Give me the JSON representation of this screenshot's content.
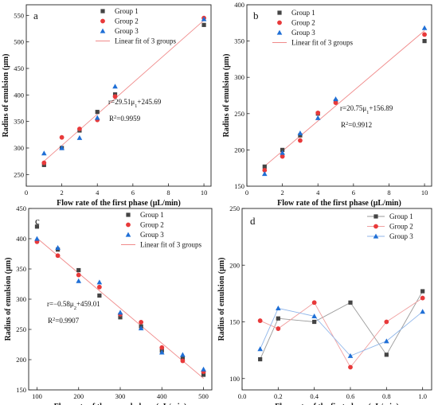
{
  "chart_data": [
    {
      "type": "scatter",
      "panel_label": "a",
      "xlabel": "Flow rate of the first phase (μL/min)",
      "ylabel": "Radius of emulsion (μm)",
      "xlim": [
        0,
        10.4
      ],
      "ylim": [
        228,
        570
      ],
      "xticks": [
        0,
        2,
        4,
        6,
        8,
        10
      ],
      "yticks": [
        250,
        300,
        350,
        400,
        450,
        500,
        550
      ],
      "x": [
        1,
        2,
        3,
        4,
        5,
        10
      ],
      "series": [
        {
          "name": "Group 1",
          "marker": "square",
          "color": "#444444",
          "values": [
            268,
            300,
            333,
            368,
            401,
            532
          ]
        },
        {
          "name": "Group 2",
          "marker": "circle",
          "color": "#e8393a",
          "values": [
            272,
            320,
            336,
            353,
            397,
            545
          ]
        },
        {
          "name": "Group 3",
          "marker": "triangle",
          "color": "#1f6fd6",
          "values": [
            290,
            300,
            319,
            357,
            416,
            543
          ]
        }
      ],
      "fit": {
        "name": "Linear fit of 3 groups",
        "color": "#f08a8a",
        "slope": 29.51,
        "intercept": 245.69,
        "x_range": [
          1,
          10
        ]
      },
      "equation": "r=29.51μ",
      "equation_sub": "1",
      "equation_tail": "+245.69",
      "r2_prefix": "R",
      "r2_sup": "2",
      "r2_value": "=0.9959"
    },
    {
      "type": "scatter",
      "panel_label": "b",
      "xlabel": "Flow rate of the first phase (μL/min)",
      "ylabel": "Radius of emulsion (μm)",
      "xlim": [
        0,
        10.4
      ],
      "ylim": [
        150,
        400
      ],
      "xticks": [
        0,
        2,
        4,
        6,
        8,
        10
      ],
      "yticks": [
        150,
        200,
        250,
        300,
        350,
        400
      ],
      "x": [
        1,
        2,
        3,
        4,
        5,
        10
      ],
      "series": [
        {
          "name": "Group 1",
          "marker": "square",
          "color": "#444444",
          "values": [
            177,
            200,
            220,
            250,
            267,
            350
          ]
        },
        {
          "name": "Group 2",
          "marker": "circle",
          "color": "#e8393a",
          "values": [
            172,
            191,
            213,
            251,
            265,
            359
          ]
        },
        {
          "name": "Group 3",
          "marker": "triangle",
          "color": "#1f6fd6",
          "values": [
            167,
            196,
            223,
            244,
            270,
            368
          ]
        }
      ],
      "fit": {
        "name": "Linear fit of 3 groups",
        "color": "#f08a8a",
        "slope": 20.75,
        "intercept": 156.89,
        "x_range": [
          1,
          10
        ]
      },
      "equation": "r=20.75μ",
      "equation_sub": "1",
      "equation_tail": "+156.89",
      "r2_prefix": "R",
      "r2_sup": "2",
      "r2_value": "=0.9912"
    },
    {
      "type": "scatter",
      "panel_label": "c",
      "xlabel": "Flow rate of the second phase (μL/min)",
      "ylabel": "Radius of emulsion (μm)",
      "xlim": [
        80,
        520
      ],
      "ylim": [
        150,
        450
      ],
      "xticks": [
        100,
        200,
        300,
        400,
        500
      ],
      "yticks": [
        150,
        200,
        250,
        300,
        350,
        400,
        450
      ],
      "x": [
        100,
        150,
        200,
        250,
        300,
        350,
        400,
        450,
        500
      ],
      "series": [
        {
          "name": "Group 1",
          "marker": "square",
          "color": "#444444",
          "values": [
            420,
            382,
            348,
            306,
            270,
            255,
            215,
            203,
            175
          ]
        },
        {
          "name": "Group 2",
          "marker": "circle",
          "color": "#e8393a",
          "values": [
            395,
            372,
            340,
            320,
            275,
            262,
            220,
            198,
            180
          ]
        },
        {
          "name": "Group 3",
          "marker": "triangle",
          "color": "#1f6fd6",
          "values": [
            400,
            385,
            330,
            328,
            278,
            252,
            212,
            208,
            184
          ]
        }
      ],
      "fit": {
        "name": "Linear fit of 3 groups",
        "color": "#f08a8a",
        "slope": -0.58,
        "intercept": 459.01,
        "x_range": [
          100,
          500
        ]
      },
      "equation": "r=−0.58μ",
      "equation_sub": "2",
      "equation_tail": "+459.01",
      "r2_prefix": "R",
      "r2_sup": "2",
      "r2_value": "=0.9907"
    },
    {
      "type": "line",
      "panel_label": "d",
      "xlabel": "Flow rate of the first phase (μL/min)",
      "ylabel": "Radius of emulsion (μm)",
      "xlim": [
        0,
        1.05
      ],
      "ylim": [
        90,
        250
      ],
      "xticks": [
        0,
        0.2,
        0.4,
        0.6,
        0.8,
        1.0
      ],
      "xtick_labels": [
        "0.0",
        "0.2",
        "0.4",
        "0.6",
        "0.8",
        "1.0"
      ],
      "yticks": [
        100,
        150,
        200,
        250
      ],
      "x": [
        0.1,
        0.2,
        0.4,
        0.6,
        0.8,
        1.0
      ],
      "series": [
        {
          "name": "Group 1",
          "marker": "square",
          "color": "#444444",
          "line_color": "#9a9a9a",
          "values": [
            117,
            153,
            150,
            167,
            121,
            177
          ]
        },
        {
          "name": "Group 2",
          "marker": "circle",
          "color": "#e8393a",
          "line_color": "#f0a0a0",
          "values": [
            151,
            144,
            167,
            110,
            150,
            171
          ]
        },
        {
          "name": "Group 3",
          "marker": "triangle",
          "color": "#1f6fd6",
          "line_color": "#8fb6ea",
          "values": [
            126,
            162,
            155,
            120,
            133,
            159
          ]
        }
      ]
    }
  ]
}
